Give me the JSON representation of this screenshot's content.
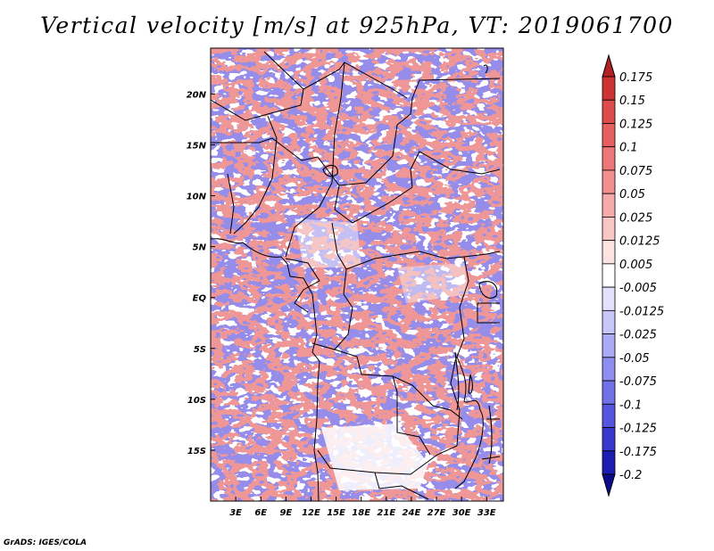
{
  "title": "Vertical velocity [m/s] at 925hPa, VT: 2019061700",
  "credit": "GrADS: IGES/COLA",
  "map": {
    "lon_range": [
      0,
      35
    ],
    "lat_range": [
      -20,
      24.5
    ],
    "x_ticks": [
      "3E",
      "6E",
      "9E",
      "12E",
      "15E",
      "18E",
      "21E",
      "24E",
      "27E",
      "30E",
      "33E"
    ],
    "x_tick_values": [
      3,
      6,
      9,
      12,
      15,
      18,
      21,
      24,
      27,
      30,
      33
    ],
    "y_ticks": [
      "20N",
      "15N",
      "10N",
      "5N",
      "EQ",
      "5S",
      "10S",
      "15S"
    ],
    "y_tick_values": [
      20,
      15,
      10,
      5,
      0,
      -5,
      -10,
      -15
    ]
  },
  "colorbar": {
    "labels": [
      "0.175",
      "0.15",
      "0.125",
      "0.1",
      "0.075",
      "0.05",
      "0.025",
      "0.0125",
      "0.005",
      "-0.005",
      "-0.0125",
      "-0.025",
      "-0.05",
      "-0.075",
      "-0.1",
      "-0.125",
      "-0.175",
      "-0.2"
    ],
    "colors": [
      "#b22222",
      "#cc3333",
      "#dd4b4b",
      "#e66060",
      "#ee7878",
      "#f29090",
      "#f6aaaa",
      "#f9c6c6",
      "#fde2e2",
      "#ffffff",
      "#e2e2fd",
      "#c6c6f9",
      "#aaaaf6",
      "#8e8ef0",
      "#7272e8",
      "#5555dd",
      "#3838cc",
      "#1c1cb0",
      "#0c0c8a"
    ]
  }
}
